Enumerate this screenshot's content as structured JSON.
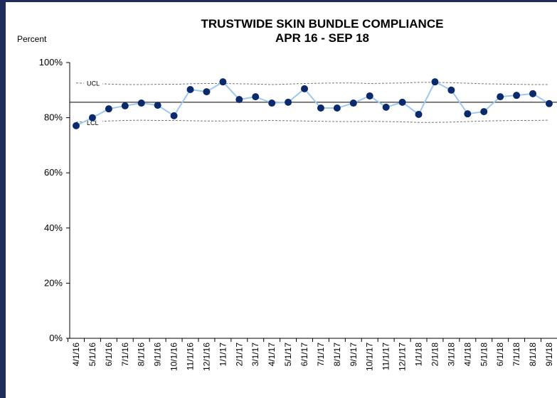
{
  "chart_data": {
    "type": "line",
    "title": "TRUSTWIDE SKIN BUNDLE COMPLIANCE",
    "subtitle": "APR 16 - SEP 18",
    "y_label": "Percent",
    "categories": [
      "4/1/16",
      "5/1/16",
      "6/1/16",
      "7/1/16",
      "8/1/16",
      "9/1/16",
      "10/1/16",
      "11/1/16",
      "12/1/16",
      "1/1/17",
      "2/1/17",
      "3/1/17",
      "4/1/17",
      "5/1/17",
      "6/1/17",
      "7/1/17",
      "8/1/17",
      "9/1/17",
      "10/1/17",
      "11/1/17",
      "12/1/17",
      "1/1/18",
      "2/1/18",
      "3/1/18",
      "4/1/18",
      "5/1/18",
      "6/1/18",
      "7/1/18",
      "8/1/18",
      "9/1/18"
    ],
    "series": [
      {
        "color": "#0b2a6b",
        "line_color": "#9dc9ef",
        "values": [
          77.1,
          80.0,
          83.2,
          84.3,
          85.3,
          84.5,
          80.7,
          90.2,
          89.4,
          93.0,
          86.6,
          87.6,
          85.3,
          85.6,
          90.5,
          83.5,
          83.5,
          85.3,
          87.9,
          83.8,
          85.6,
          81.2,
          93.0,
          90.0,
          81.4,
          82.2,
          87.6,
          88.1,
          88.7,
          85.1
        ]
      }
    ],
    "center_line": 85.6,
    "ucl": {
      "label": "UCL",
      "color": "#777777",
      "values": [
        92.6,
        92.4,
        92.2,
        92.0,
        92.0,
        92.1,
        92.1,
        92.3,
        92.4,
        92.4,
        92.3,
        92.2,
        92.0,
        92.2,
        92.4,
        92.5,
        92.6,
        92.6,
        92.4,
        92.5,
        92.6,
        92.8,
        92.8,
        92.7,
        92.5,
        92.3,
        92.2,
        92.1,
        92.0,
        92.0
      ]
    },
    "lcl": {
      "label": "LCL",
      "color": "#777777",
      "values": [
        78.4,
        78.6,
        78.8,
        79.0,
        79.1,
        79.0,
        79.0,
        78.9,
        78.8,
        78.8,
        78.9,
        78.9,
        79.0,
        78.9,
        78.8,
        78.7,
        78.6,
        78.6,
        78.7,
        78.6,
        78.5,
        78.3,
        78.3,
        78.4,
        78.6,
        78.8,
        78.9,
        79.0,
        79.0,
        79.1
      ]
    },
    "ylim": [
      0,
      100
    ],
    "yticks": [
      {
        "value": 0,
        "label": "0%"
      },
      {
        "value": 20,
        "label": "20%"
      },
      {
        "value": 40,
        "label": "40%"
      },
      {
        "value": 60,
        "label": "60%"
      },
      {
        "value": 80,
        "label": "80%"
      },
      {
        "value": 100,
        "label": "100%"
      }
    ]
  }
}
